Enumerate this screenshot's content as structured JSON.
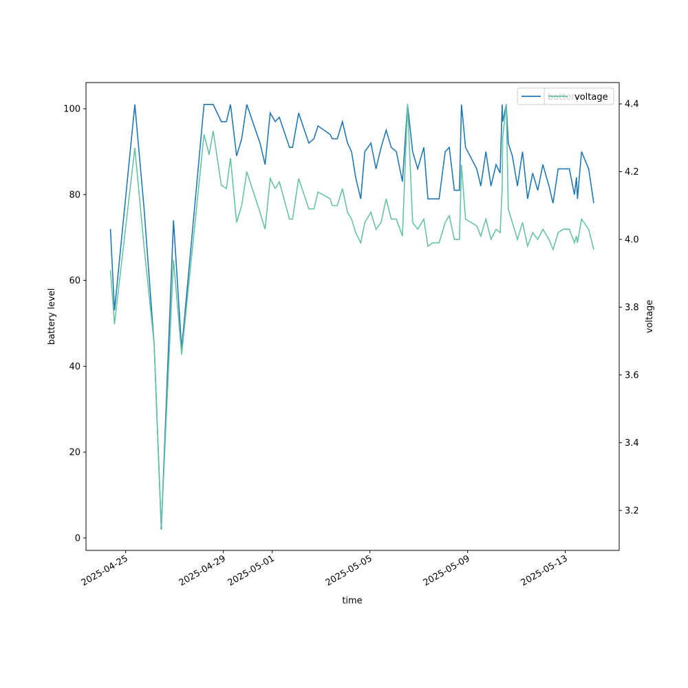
{
  "chart_data": {
    "type": "line",
    "x_label": "time",
    "y_label": "battery level",
    "y2_label": "voltage",
    "x": [
      "2025-04-24T09:00",
      "2025-04-24T13:00",
      "2025-04-25T09:00",
      "2025-04-25T18:00",
      "2025-04-26T04:00",
      "2025-04-26T11:00",
      "2025-04-26T23:00",
      "2025-04-27T07:00",
      "2025-04-28T05:00",
      "2025-04-28T10:00",
      "2025-04-28T14:00",
      "2025-04-28T22:00",
      "2025-04-29T03:00",
      "2025-04-29T07:00",
      "2025-04-29T13:00",
      "2025-04-29T18:00",
      "2025-04-29T23:00",
      "2025-04-30T12:00",
      "2025-04-30T17:00",
      "2025-04-30T22:00",
      "2025-05-01T03:00",
      "2025-05-01T07:00",
      "2025-05-01T17:00",
      "2025-05-01T20:00",
      "2025-05-02T02:00",
      "2025-05-02T12:00",
      "2025-05-02T17:00",
      "2025-05-02T21:00",
      "2025-05-03T09:00",
      "2025-05-03T11:00",
      "2025-05-03T16:00",
      "2025-05-03T21:00",
      "2025-05-04T02:00",
      "2025-05-04T06:00",
      "2025-05-04T10:00",
      "2025-05-04T15:00",
      "2025-05-04T19:00",
      "2025-05-05T01:00",
      "2025-05-05T06:00",
      "2025-05-05T11:00",
      "2025-05-05T16:00",
      "2025-05-05T21:00",
      "2025-05-06T02:00",
      "2025-05-06T08:00",
      "2025-05-06T13:00",
      "2025-05-06T18:00",
      "2025-05-06T23:00",
      "2025-05-07T05:00",
      "2025-05-07T09:00",
      "2025-05-07T14:00",
      "2025-05-07T20:00",
      "2025-05-08T02:00",
      "2025-05-08T06:00",
      "2025-05-08T11:00",
      "2025-05-08T16:00",
      "2025-05-08T18:00",
      "2025-05-08T22:00",
      "2025-05-09T09:00",
      "2025-05-09T13:00",
      "2025-05-09T18:00",
      "2025-05-09T23:00",
      "2025-05-10T04:00",
      "2025-05-10T08:00",
      "2025-05-10T10:00",
      "2025-05-10T10:30",
      "2025-05-10T14:00",
      "2025-05-10T16:00",
      "2025-05-10T20:00",
      "2025-05-11T01:00",
      "2025-05-11T06:00",
      "2025-05-11T11:00",
      "2025-05-11T16:00",
      "2025-05-11T21:00",
      "2025-05-12T02:00",
      "2025-05-12T08:00",
      "2025-05-12T12:00",
      "2025-05-12T17:00",
      "2025-05-12T22:00",
      "2025-05-13T04:00",
      "2025-05-13T09:00",
      "2025-05-13T11:00",
      "2025-05-13T12:00",
      "2025-05-13T16:00",
      "2025-05-13T23:00",
      "2025-05-14T04:00"
    ],
    "series": [
      {
        "name": "battery",
        "color": "#1f77b4",
        "values": [
          72,
          53,
          101,
          77,
          45,
          2,
          74,
          44,
          101,
          101,
          101,
          97,
          97,
          101,
          89,
          93,
          101,
          92,
          87,
          99,
          97,
          98,
          91,
          91,
          99,
          92,
          93,
          96,
          94,
          93,
          93,
          97,
          92,
          90,
          84,
          79,
          90,
          92,
          86,
          91,
          95,
          91,
          90,
          83,
          101,
          90,
          86,
          91,
          79,
          79,
          79,
          90,
          91,
          81,
          81,
          101,
          91,
          86,
          82,
          90,
          82,
          87,
          85,
          101,
          97,
          101,
          92,
          89,
          82,
          90,
          79,
          85,
          81,
          87,
          82,
          78,
          86,
          86,
          86,
          80,
          84,
          79,
          90,
          86,
          78
        ]
      },
      {
        "name": "voltage",
        "color": "#66c2a5",
        "axis": "y2",
        "values": [
          3.91,
          3.75,
          4.27,
          3.98,
          3.69,
          3.15,
          3.94,
          3.66,
          4.31,
          4.25,
          4.32,
          4.16,
          4.15,
          4.24,
          4.05,
          4.1,
          4.2,
          4.08,
          4.03,
          4.18,
          4.15,
          4.17,
          4.06,
          4.06,
          4.18,
          4.09,
          4.09,
          4.14,
          4.12,
          4.1,
          4.1,
          4.15,
          4.08,
          4.06,
          4.02,
          3.99,
          4.05,
          4.08,
          4.03,
          4.05,
          4.12,
          4.06,
          4.06,
          4.01,
          4.4,
          4.05,
          4.03,
          4.06,
          3.98,
          3.99,
          3.99,
          4.05,
          4.07,
          4.0,
          4.0,
          4.22,
          4.06,
          4.04,
          4.01,
          4.06,
          4.0,
          4.03,
          4.02,
          4.15,
          4.3,
          4.4,
          4.09,
          4.05,
          4.0,
          4.05,
          3.98,
          4.02,
          4.0,
          4.03,
          4.0,
          3.97,
          4.02,
          4.03,
          4.03,
          3.99,
          4.01,
          3.99,
          4.06,
          4.03,
          3.97
        ]
      }
    ],
    "xlim": [
      "2025-04-23T09:00",
      "2025-05-15T05:00"
    ],
    "xticks": [
      "2025-04-25",
      "2025-04-29",
      "2025-05-01",
      "2025-05-05",
      "2025-05-09",
      "2025-05-13"
    ],
    "ylim": [
      -2.9,
      106.1
    ],
    "yticks": [
      0,
      20,
      40,
      60,
      80,
      100
    ],
    "y2lim": [
      3.082,
      4.463
    ],
    "y2ticks": [
      3.2,
      3.4,
      3.6,
      3.8,
      {
        "value": 4.0,
        "label": "4.0"
      },
      4.2,
      4.4
    ],
    "legend": "upper right",
    "grid": false
  }
}
